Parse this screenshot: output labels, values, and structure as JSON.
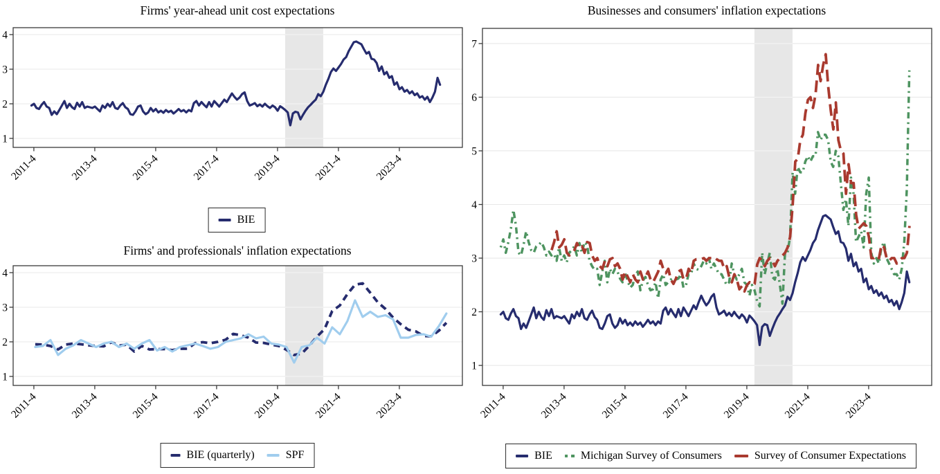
{
  "figure": {
    "background": "#ffffff",
    "shaded_region": {
      "name": "pandemic-recession-shading",
      "from": 2020.08,
      "to": 2021.33,
      "color": "#e7e7e7"
    },
    "x_ticks": [
      {
        "label": "2011-4",
        "t": 2011.83
      },
      {
        "label": "2013-4",
        "t": 2013.83
      },
      {
        "label": "2015-4",
        "t": 2015.83
      },
      {
        "label": "2017-4",
        "t": 2017.83
      },
      {
        "label": "2019-4",
        "t": 2019.83
      },
      {
        "label": "2021-4",
        "t": 2021.83
      },
      {
        "label": "2023-4",
        "t": 2023.83
      }
    ],
    "colors": {
      "navy": "#262c6e",
      "lightblue": "#a0cdee",
      "green": "#4e9460",
      "red": "#a93a2f",
      "gridline": "#e8e8e8",
      "axis": "#3a3a3a",
      "text": "#000000"
    }
  },
  "chart_data": [
    {
      "type": "line",
      "title": "Firms' year-ahead unit cost expectations",
      "xlabel": "",
      "ylabel": "",
      "y_ticks": [
        1,
        2,
        3,
        4
      ],
      "ylim": [
        0.74,
        4.2
      ],
      "xlim": [
        2011.15,
        2025.9
      ],
      "grid": "horizontal",
      "legend_position": "bottom-center",
      "series": [
        {
          "name": "BIE",
          "data_ref": "bie_monthly",
          "color_ref": "navy",
          "style": "solid",
          "x0": 2011.75,
          "dx": 0.083333
        }
      ],
      "legend": [
        {
          "label": "BIE",
          "color_ref": "navy",
          "swatch": "line",
          "swatch_w": 18
        }
      ]
    },
    {
      "type": "line",
      "title": "Firms' and professionals' inflation expectations",
      "xlabel": "",
      "ylabel": "",
      "y_ticks": [
        1,
        2,
        3,
        4
      ],
      "ylim": [
        0.74,
        4.2
      ],
      "xlim": [
        2011.15,
        2025.9
      ],
      "grid": "horizontal",
      "legend_position": "bottom-center",
      "series": [
        {
          "name": "BIE (quarterly)",
          "data_ref": "bie_quarterly",
          "color_ref": "navy",
          "style": "dashed",
          "x0": 2011.875,
          "dx": 0.25
        },
        {
          "name": "SPF",
          "data_ref": "spf_quarterly",
          "color_ref": "lightblue",
          "style": "solid",
          "x0": 2011.875,
          "dx": 0.25
        }
      ],
      "legend": [
        {
          "label": "BIE (quarterly)",
          "color_ref": "navy",
          "swatch": "line",
          "swatch_w": 14
        },
        {
          "label": "SPF",
          "color_ref": "lightblue",
          "swatch": "line",
          "swatch_w": 18
        }
      ]
    },
    {
      "type": "line",
      "title": "Businesses and consumers' inflation expectations",
      "xlabel": "",
      "ylabel": "",
      "y_ticks": [
        1,
        2,
        3,
        4,
        5,
        6,
        7
      ],
      "ylim": [
        0.627,
        7.283
      ],
      "xlim": [
        2011.15,
        2025.9
      ],
      "grid": "horizontal",
      "legend_position": "bottom-center",
      "series": [
        {
          "name": "BIE",
          "data_ref": "bie_monthly",
          "color_ref": "navy",
          "style": "solid",
          "x0": 2011.75,
          "dx": 0.083333
        },
        {
          "name": "Michigan Survey of Consumers",
          "data_ref": "michigan_monthly",
          "color_ref": "green",
          "style": "dashdot",
          "x0": 2011.75,
          "dx": 0.083333
        },
        {
          "name": "Survey of Consumer Expectations",
          "data_ref": "sce_monthly",
          "color_ref": "red",
          "style": "longdash",
          "x0": 2013.42,
          "dx": 0.083333
        }
      ],
      "legend": [
        {
          "label": "BIE",
          "color_ref": "navy",
          "swatch": "line",
          "swatch_w": 18
        },
        {
          "label": "Michigan Survey of Consumers",
          "color_ref": "green",
          "swatch": "squares"
        },
        {
          "label": "Survey of Consumer Expectations",
          "color_ref": "red",
          "swatch": "line",
          "swatch_w": 20
        }
      ]
    }
  ],
  "series_data": {
    "bie_monthly": [
      1.95,
      2.0,
      1.88,
      1.85,
      1.97,
      2.05,
      1.92,
      1.88,
      1.68,
      1.78,
      1.7,
      1.82,
      1.95,
      2.08,
      1.88,
      2.0,
      1.9,
      1.85,
      2.03,
      1.92,
      2.05,
      1.88,
      1.92,
      1.9,
      1.88,
      1.92,
      1.85,
      1.78,
      1.95,
      1.88,
      2.0,
      1.92,
      2.05,
      1.88,
      1.85,
      1.95,
      2.02,
      1.9,
      1.85,
      1.7,
      1.68,
      1.78,
      1.92,
      1.95,
      1.78,
      1.7,
      1.75,
      1.88,
      1.78,
      1.85,
      1.75,
      1.8,
      1.74,
      1.82,
      1.76,
      1.8,
      1.72,
      1.78,
      1.85,
      1.78,
      1.82,
      1.75,
      1.82,
      1.78,
      2.02,
      2.08,
      1.95,
      2.05,
      1.97,
      1.9,
      2.05,
      1.92,
      2.08,
      2.0,
      1.92,
      2.02,
      2.12,
      2.05,
      2.18,
      2.3,
      2.2,
      2.12,
      2.18,
      2.28,
      2.33,
      2.08,
      1.95,
      1.98,
      2.02,
      1.93,
      1.98,
      1.92,
      2.0,
      1.93,
      1.88,
      1.95,
      1.9,
      1.8,
      1.93,
      1.88,
      1.82,
      1.75,
      1.38,
      1.72,
      1.77,
      1.75,
      1.55,
      1.68,
      1.8,
      1.9,
      1.97,
      2.05,
      2.12,
      2.28,
      2.22,
      2.35,
      2.55,
      2.72,
      2.92,
      3.02,
      2.95,
      3.05,
      3.15,
      3.28,
      3.35,
      3.52,
      3.65,
      3.78,
      3.8,
      3.76,
      3.72,
      3.58,
      3.45,
      3.5,
      3.3,
      3.28,
      3.18,
      2.95,
      3.08,
      2.85,
      2.92,
      2.75,
      2.8,
      2.55,
      2.62,
      2.42,
      2.48,
      2.35,
      2.4,
      2.3,
      2.36,
      2.25,
      2.3,
      2.18,
      2.22,
      2.12,
      2.2,
      2.05,
      2.18,
      2.35,
      2.75,
      2.55
    ],
    "bie_quarterly": [
      1.93,
      1.92,
      1.88,
      1.78,
      1.92,
      1.95,
      1.93,
      1.9,
      1.88,
      1.87,
      1.99,
      1.89,
      1.92,
      1.72,
      1.88,
      1.78,
      1.79,
      1.79,
      1.76,
      1.8,
      1.8,
      1.96,
      1.99,
      1.96,
      2.0,
      2.06,
      2.23,
      2.19,
      2.12,
      1.98,
      1.97,
      1.92,
      1.88,
      1.77,
      1.62,
      1.66,
      1.89,
      2.15,
      2.37,
      2.89,
      3.05,
      3.38,
      3.65,
      3.69,
      3.42,
      3.14,
      2.95,
      2.7,
      2.51,
      2.35,
      2.3,
      2.17,
      2.16,
      2.32,
      2.55
    ],
    "spf_quarterly": [
      1.85,
      1.88,
      2.05,
      1.62,
      1.8,
      1.9,
      2.05,
      1.95,
      1.85,
      1.95,
      2.0,
      1.85,
      1.95,
      1.8,
      1.95,
      2.05,
      1.75,
      1.85,
      1.72,
      1.85,
      1.9,
      1.95,
      1.88,
      1.8,
      1.85,
      2.0,
      2.05,
      2.1,
      2.22,
      2.1,
      2.15,
      1.95,
      1.92,
      1.85,
      1.4,
      1.85,
      1.9,
      2.12,
      1.95,
      2.42,
      2.22,
      2.6,
      3.2,
      2.72,
      2.87,
      2.72,
      2.77,
      2.65,
      2.12,
      2.12,
      2.2,
      2.22,
      2.15,
      2.45,
      2.82
    ],
    "michigan_monthly": [
      3.2,
      3.35,
      3.1,
      3.3,
      3.55,
      3.9,
      3.6,
      3.1,
      3.05,
      3.25,
      3.5,
      3.3,
      3.15,
      3.1,
      3.22,
      3.25,
      3.3,
      3.2,
      3.05,
      3.12,
      3.05,
      3.08,
      2.95,
      3.2,
      2.95,
      3.05,
      2.92,
      3.1,
      3.15,
      3.22,
      3.05,
      3.28,
      3.1,
      3.3,
      3.25,
      2.95,
      2.85,
      2.78,
      2.8,
      2.5,
      2.75,
      2.95,
      2.55,
      2.8,
      2.7,
      2.8,
      2.75,
      2.62,
      2.55,
      2.72,
      2.58,
      2.45,
      2.5,
      2.68,
      2.75,
      2.4,
      2.58,
      2.65,
      2.5,
      2.4,
      2.42,
      2.55,
      2.25,
      2.6,
      2.7,
      2.5,
      2.55,
      2.6,
      2.62,
      2.6,
      2.62,
      2.7,
      2.45,
      2.5,
      2.7,
      2.7,
      2.9,
      2.8,
      2.78,
      2.85,
      2.95,
      2.9,
      3.0,
      2.8,
      2.9,
      2.8,
      2.7,
      2.7,
      2.6,
      2.5,
      2.55,
      2.9,
      2.7,
      2.6,
      2.7,
      2.8,
      2.55,
      2.5,
      2.3,
      2.5,
      2.4,
      2.2,
      2.1,
      3.1,
      2.7,
      2.9,
      3.1,
      2.65,
      2.6,
      2.8,
      2.5,
      2.15,
      3.1,
      3.1,
      3.4,
      4.6,
      4.2,
      4.7,
      4.6,
      4.6,
      4.8,
      4.9,
      4.8,
      4.9,
      4.9,
      5.35,
      5.2,
      5.3,
      5.3,
      5.2,
      4.8,
      4.7,
      5.0,
      4.9,
      4.4,
      3.9,
      4.1,
      3.6,
      4.5,
      4.2,
      3.3,
      3.4,
      3.5,
      3.2,
      4.2,
      4.5,
      3.1,
      2.9,
      3.0,
      2.9,
      3.2,
      3.3,
      3.0,
      2.9,
      2.8,
      2.7,
      2.7,
      2.6,
      2.8,
      3.3,
      4.3,
      6.5
    ],
    "sce_monthly": [
      3.15,
      3.3,
      3.5,
      3.2,
      3.25,
      3.35,
      3.1,
      3.05,
      3.08,
      3.15,
      3.28,
      3.18,
      3.22,
      3.1,
      3.3,
      3.28,
      3.05,
      2.95,
      3.0,
      2.85,
      2.8,
      2.95,
      2.85,
      2.98,
      3.0,
      2.85,
      2.9,
      2.8,
      2.6,
      2.75,
      2.65,
      2.55,
      2.7,
      2.6,
      2.55,
      2.75,
      2.6,
      2.65,
      2.75,
      2.6,
      2.55,
      2.65,
      2.75,
      2.95,
      2.8,
      2.72,
      2.8,
      2.6,
      2.52,
      2.62,
      2.75,
      2.78,
      2.6,
      2.62,
      2.8,
      2.72,
      2.95,
      2.98,
      2.98,
      2.98,
      3.0,
      2.95,
      3.0,
      3.0,
      3.02,
      2.98,
      2.95,
      2.95,
      2.8,
      2.85,
      2.65,
      2.55,
      2.7,
      2.6,
      2.42,
      2.48,
      2.38,
      2.5,
      2.55,
      2.5,
      2.52,
      2.88,
      3.0,
      2.95,
      2.85,
      2.95,
      3.0,
      2.95,
      2.85,
      2.95,
      3.0,
      3.05,
      3.1,
      3.2,
      3.4,
      4.0,
      4.8,
      4.85,
      5.2,
      5.3,
      5.7,
      5.95,
      6.0,
      5.8,
      6.05,
      6.6,
      6.3,
      6.6,
      6.8,
      6.2,
      5.75,
      5.4,
      5.9,
      5.2,
      5.0,
      4.95,
      4.2,
      4.75,
      4.4,
      4.4,
      3.8,
      3.55,
      3.6,
      3.65,
      3.6,
      3.4,
      3.0,
      3.0,
      3.05,
      3.0,
      3.25,
      3.2,
      3.0,
      2.95,
      3.0,
      3.0,
      2.9,
      2.95,
      3.0,
      3.0,
      3.1,
      3.6
    ]
  }
}
